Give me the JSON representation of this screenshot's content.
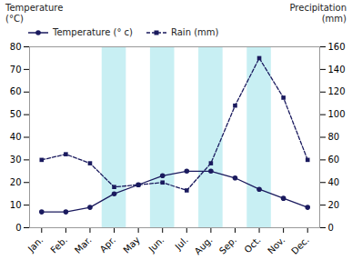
{
  "chart_data": {
    "type": "line",
    "ylabel": "Temperature\n(°C)",
    "y2label": "Precipitation\n(mm)",
    "categories": [
      "Jan.",
      "Feb.",
      "Mar.",
      "Apr.",
      "May",
      "Jun.",
      "Jul.",
      "Aug.",
      "Sep.",
      "Oct.",
      "Nov.",
      "Dec."
    ],
    "series": [
      {
        "name": "Temperature (° c)",
        "color": "#1a1a5e",
        "marker": "circle",
        "line_style": "solid",
        "axis": "y",
        "values": [
          7,
          7,
          9,
          15,
          19,
          23,
          25,
          25,
          22,
          17,
          13,
          9
        ]
      },
      {
        "name": "Rain (mm)",
        "color": "#1a1a5e",
        "marker": "square",
        "line_style": "dashed",
        "axis": "y2",
        "values": [
          60,
          65,
          57,
          36,
          38,
          40,
          33,
          57,
          108,
          150,
          115,
          60
        ]
      }
    ],
    "ylim": [
      0,
      80
    ],
    "yticks": [
      0,
      10,
      20,
      30,
      40,
      50,
      60,
      70,
      80
    ],
    "y2lim": [
      0,
      160
    ],
    "y2ticks": [
      0,
      20,
      40,
      60,
      80,
      100,
      120,
      140,
      160
    ],
    "highlight_categories": [
      "Apr.",
      "Jun.",
      "Aug.",
      "Oct."
    ],
    "highlight_color": "#b0e8ee",
    "legend": "upper left",
    "grid": false
  }
}
